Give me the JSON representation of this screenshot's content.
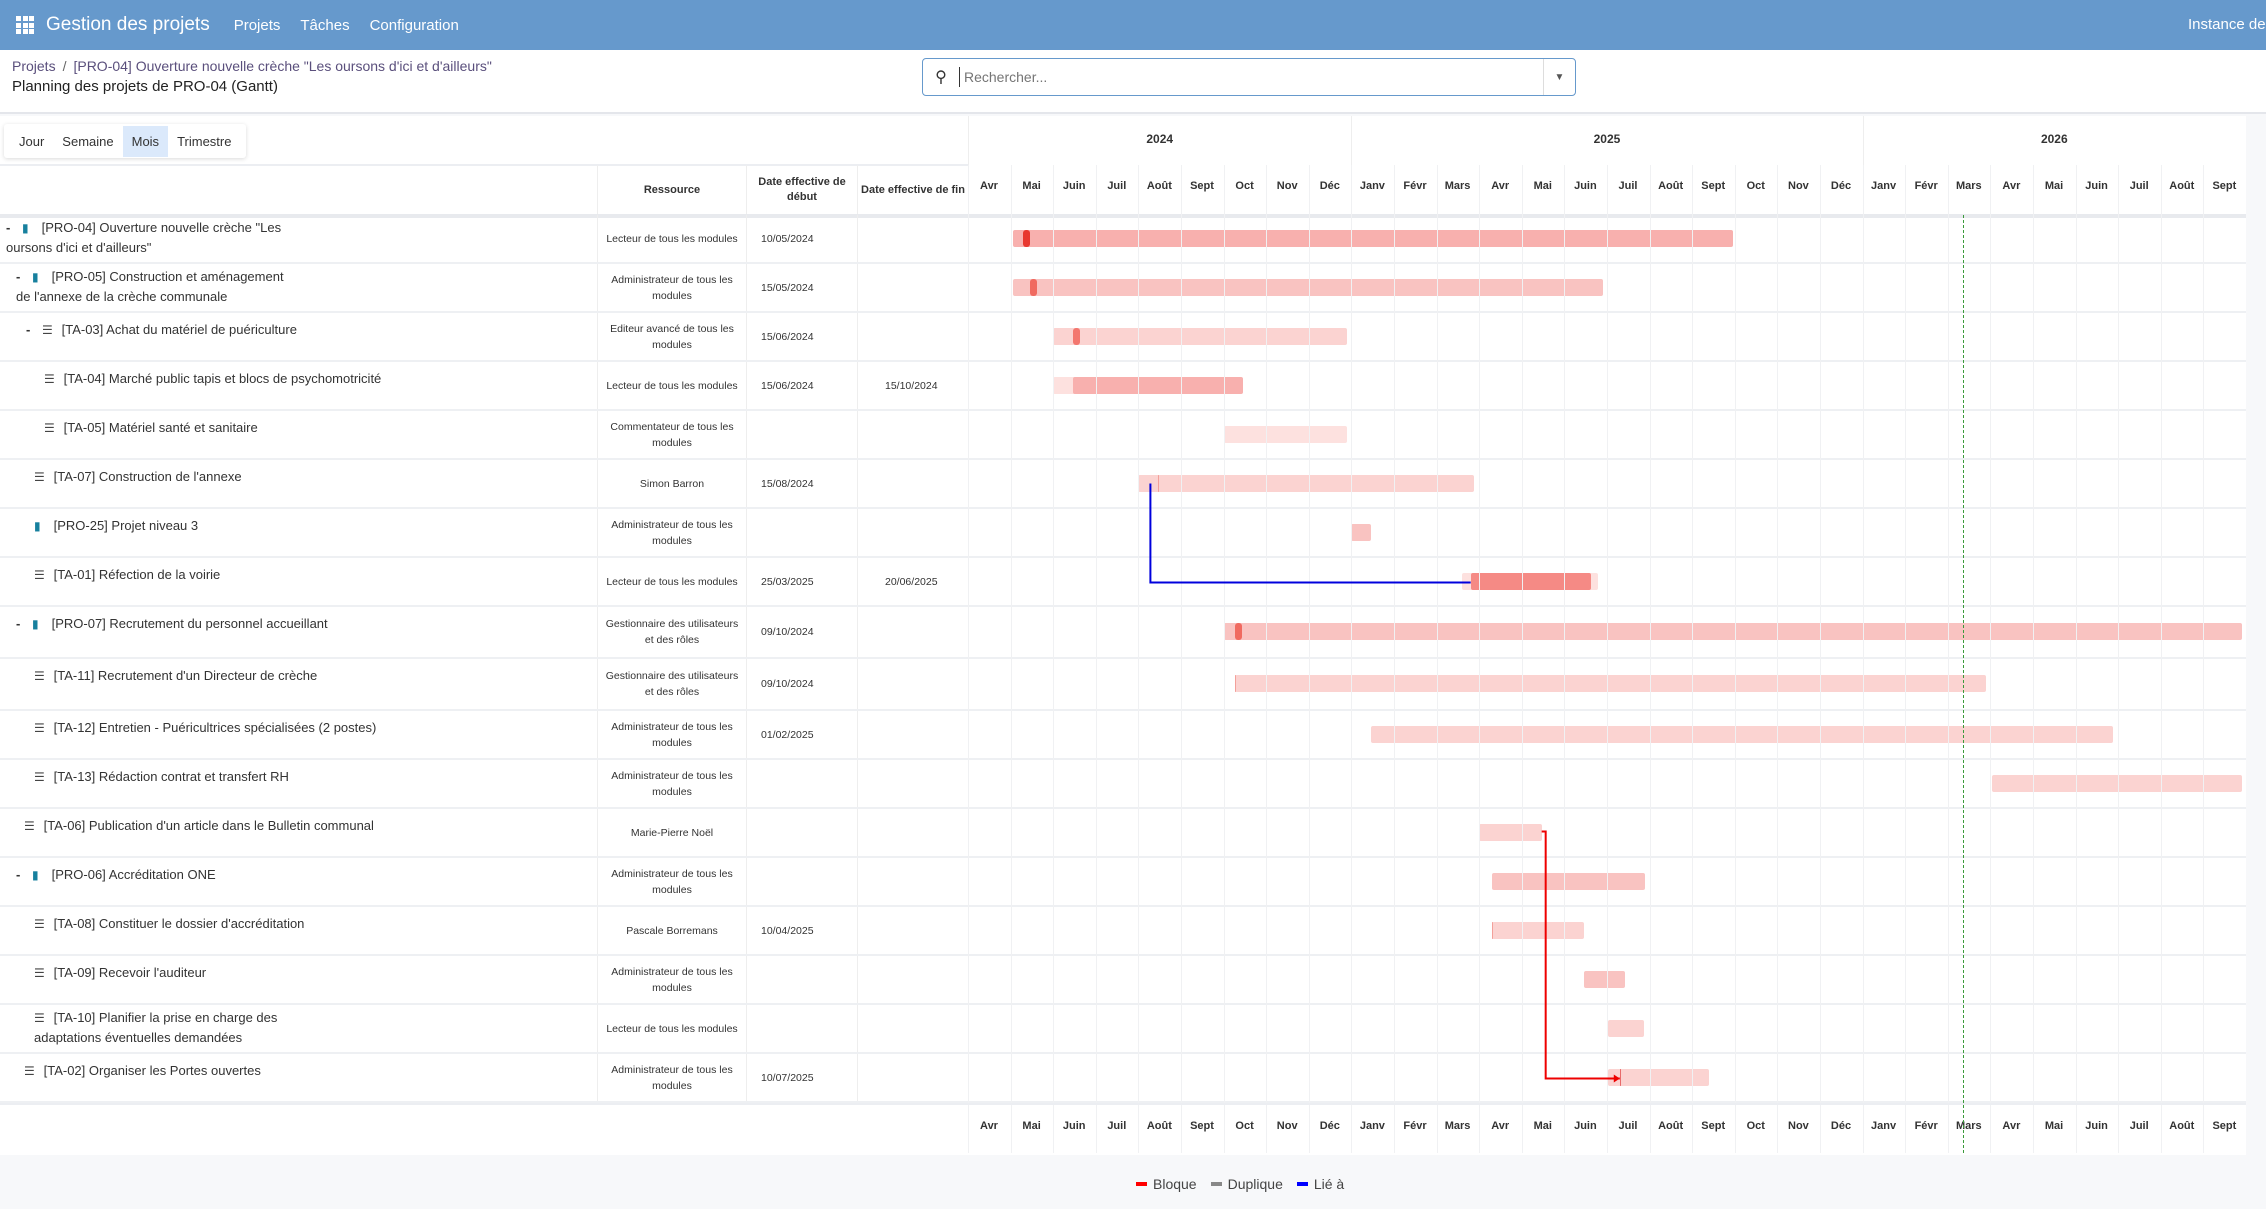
{
  "nav": {
    "app_title": "Gestion des projets",
    "items": [
      "Projets",
      "Tâches",
      "Configuration"
    ],
    "instance": "Instance de"
  },
  "breadcrumb": {
    "root": "Projets",
    "current": "[PRO-04] Ouverture nouvelle crèche \"Les oursons d'ici et d'ailleurs\""
  },
  "page_title": "Planning des projets de PRO-04 (Gantt)",
  "search": {
    "placeholder": "Rechercher...",
    "value": ""
  },
  "scales": {
    "items": [
      "Jour",
      "Semaine",
      "Mois",
      "Trimestre"
    ],
    "active": "Mois"
  },
  "columns": {
    "resource": "Ressource",
    "start": "Date effective de début",
    "end": "Date effective de fin"
  },
  "timeline": {
    "start": "2024-04-01",
    "years": [
      {
        "label": "2024",
        "months": 9
      },
      {
        "label": "2025",
        "months": 12
      },
      {
        "label": "2026",
        "months": 9
      }
    ],
    "months": [
      "Avr",
      "Mai",
      "Juin",
      "Juil",
      "Août",
      "Sept",
      "Oct",
      "Nov",
      "Déc",
      "Janv",
      "Févr",
      "Mars",
      "Avr",
      "Mai",
      "Juin",
      "Juil",
      "Août",
      "Sept",
      "Oct",
      "Nov",
      "Déc",
      "Janv",
      "Févr",
      "Mars",
      "Avr",
      "Mai",
      "Juin",
      "Juil",
      "Août",
      "Sept"
    ],
    "today": "2026-03-12"
  },
  "rows": [
    {
      "name": "[PRO-04] Ouverture nouvelle crèche \"Les oursons d'ici et d'ailleurs\"",
      "type": "folder-open",
      "toggle": "-",
      "level": 0,
      "resource": "Lecteur de tous les modules",
      "start": "10/05/2024",
      "end": "",
      "bar": {
        "from": "2024-05-03",
        "to": "2025-09-30",
        "tone": "strong",
        "marker": "2024-05-10",
        "markerColor": "#e8382f"
      }
    },
    {
      "name": "[PRO-05] Construction et aménagement de l'annexe de la crèche communale",
      "type": "folder",
      "toggle": "-",
      "level": 1,
      "resource": "Administrateur de tous les modules",
      "start": "15/05/2024",
      "end": "",
      "bar": {
        "from": "2024-05-03",
        "to": "2025-06-28",
        "tone": "medium",
        "marker": "2024-05-15",
        "markerColor": "#f06a60"
      }
    },
    {
      "name": "[TA-03] Achat du matériel de puériculture",
      "type": "tasks",
      "toggle": "-",
      "level": 2,
      "resource": "Editeur avancé de tous les modules",
      "start": "15/06/2024",
      "end": "",
      "bar": {
        "from": "2024-06-01",
        "to": "2024-12-28",
        "tone": "light",
        "marker": "2024-06-15",
        "markerColor": "#f3776f"
      }
    },
    {
      "name": "[TA-04] Marché public tapis et blocs de psychomotricité",
      "type": "tasks",
      "toggle": "",
      "level": 3,
      "resource": "Lecteur de tous les modules",
      "start": "15/06/2024",
      "end": "15/10/2024",
      "bar": {
        "from": "2024-06-01",
        "to": "2024-10-14",
        "tone": "faint",
        "inner": {
          "from": "2024-06-15",
          "to": "2024-10-15",
          "tone": "strong"
        }
      }
    },
    {
      "name": "[TA-05] Matériel santé et sanitaire",
      "type": "tasks",
      "toggle": "",
      "level": 3,
      "resource": "Commentateur de tous les modules",
      "start": "",
      "end": "",
      "bar": {
        "from": "2024-10-01",
        "to": "2024-12-28",
        "tone": "faint"
      }
    },
    {
      "name": "[TA-07] Construction de l'annexe",
      "type": "tasks",
      "toggle": "",
      "level": 2,
      "resource": "Simon Barron",
      "start": "15/08/2024",
      "end": "",
      "bar": {
        "from": "2024-08-01",
        "to": "2025-03-27",
        "tone": "light",
        "marker": "2024-08-15",
        "markerColor": "#f3a09a",
        "thin": true
      }
    },
    {
      "name": "[PRO-25] Projet niveau 3",
      "type": "folder",
      "toggle": "",
      "level": 2,
      "resource": "Administrateur de tous les modules",
      "start": "",
      "end": "",
      "bar": {
        "from": "2025-01-01",
        "to": "2025-01-15",
        "tone": "medium"
      }
    },
    {
      "name": "[TA-01] Réfection de la voirie",
      "type": "tasks",
      "toggle": "",
      "level": 2,
      "resource": "Lecteur de tous les modules",
      "start": "25/03/2025",
      "end": "20/06/2025",
      "bar": {
        "from": "2025-03-19",
        "to": "2025-06-25",
        "tone": "faint",
        "inner": {
          "from": "2025-03-25",
          "to": "2025-06-20",
          "tone": "dark"
        }
      }
    },
    {
      "name": "[PRO-07] Recrutement du personnel accueillant",
      "type": "folder",
      "toggle": "-",
      "level": 1,
      "resource": "Gestionnaire des utilisateurs et des rôles",
      "start": "09/10/2024",
      "end": "",
      "tall": true,
      "bar": {
        "from": "2024-10-01",
        "to": "2026-09-28",
        "tone": "medium",
        "marker": "2024-10-09",
        "markerColor": "#f06a60"
      }
    },
    {
      "name": "[TA-11] Recrutement d'un Directeur de crèche",
      "type": "tasks",
      "toggle": "",
      "level": 2,
      "resource": "Gestionnaire des utilisateurs et des rôles",
      "start": "09/10/2024",
      "end": "",
      "tall": true,
      "bar": {
        "from": "2024-10-09",
        "to": "2026-03-28",
        "tone": "light",
        "marker": "2024-10-09",
        "markerColor": "#f3a09a",
        "thin": true
      }
    },
    {
      "name": "[TA-12] Entretien - Puéricultrices spécialisées (2 postes)",
      "type": "tasks",
      "toggle": "",
      "level": 2,
      "resource": "Administrateur de tous les modules",
      "start": "01/02/2025",
      "end": "",
      "bar": {
        "from": "2025-01-15",
        "to": "2026-06-27",
        "tone": "light",
        "marker": "2025-02-01",
        "markerColor": "#f3a09a",
        "thin": true
      }
    },
    {
      "name": "[TA-13] Rédaction contrat et transfert RH",
      "type": "tasks",
      "toggle": "",
      "level": 2,
      "resource": "Administrateur de tous les modules",
      "start": "",
      "end": "",
      "bar": {
        "from": "2026-04-02",
        "to": "2026-09-28",
        "tone": "light"
      }
    },
    {
      "name": "[TA-06] Publication d'un article dans le Bulletin communal",
      "type": "tasks",
      "toggle": "",
      "level": 1,
      "resource": "Marie-Pierre Noël",
      "start": "",
      "end": "",
      "bar": {
        "from": "2025-04-01",
        "to": "2025-05-15",
        "tone": "light"
      }
    },
    {
      "name": "[PRO-06] Accréditation ONE",
      "type": "folder",
      "toggle": "-",
      "level": 1,
      "resource": "Administrateur de tous les modules",
      "start": "",
      "end": "",
      "bar": {
        "from": "2025-04-10",
        "to": "2025-07-28",
        "tone": "medium"
      }
    },
    {
      "name": "[TA-08] Constituer le dossier d'accréditation",
      "type": "tasks",
      "toggle": "",
      "level": 2,
      "resource": "Pascale Borremans",
      "start": "10/04/2025",
      "end": "",
      "bar": {
        "from": "2025-04-10",
        "to": "2025-06-15",
        "tone": "light",
        "marker": "2025-04-10",
        "markerColor": "#f3a09a",
        "thin": true
      }
    },
    {
      "name": "[TA-09] Recevoir l'auditeur",
      "type": "tasks",
      "toggle": "",
      "level": 2,
      "resource": "Administrateur de tous les modules",
      "start": "",
      "end": "",
      "bar": {
        "from": "2025-06-15",
        "to": "2025-07-14",
        "tone": "medium"
      }
    },
    {
      "name": "[TA-10] Planifier la prise en charge des adaptations éventuelles demandées",
      "type": "tasks",
      "toggle": "",
      "level": 2,
      "resource": "Lecteur de tous les modules",
      "start": "",
      "end": "",
      "bar": {
        "from": "2025-07-02",
        "to": "2025-07-27",
        "tone": "light"
      }
    },
    {
      "name": "[TA-02] Organiser les Portes ouvertes",
      "type": "tasks",
      "toggle": "",
      "level": 1,
      "resource": "Administrateur de tous les modules",
      "start": "10/07/2025",
      "end": "",
      "bar": {
        "from": "2025-07-02",
        "to": "2025-09-13",
        "tone": "light",
        "marker": "2025-07-10",
        "markerColor": "#e86a6a",
        "thin": true
      }
    }
  ],
  "links": [
    {
      "from": 5,
      "to": 7,
      "type": "linked"
    },
    {
      "from": 12,
      "to": 17,
      "type": "blocks"
    }
  ],
  "colors": {
    "strong": "#f8b0ae",
    "medium": "#f9c3c1",
    "light": "#fbd3d1",
    "faint": "#fde1df",
    "dark": "#f58a85",
    "blocks": "#ee0000",
    "duplicates": "#888888",
    "linked": "#0000dd",
    "today": "#3a9a3a"
  },
  "legend": [
    {
      "label": "Bloque",
      "color": "#ff0000"
    },
    {
      "label": "Duplique",
      "color": "#888888"
    },
    {
      "label": "Lié à",
      "color": "#0000ff"
    }
  ]
}
